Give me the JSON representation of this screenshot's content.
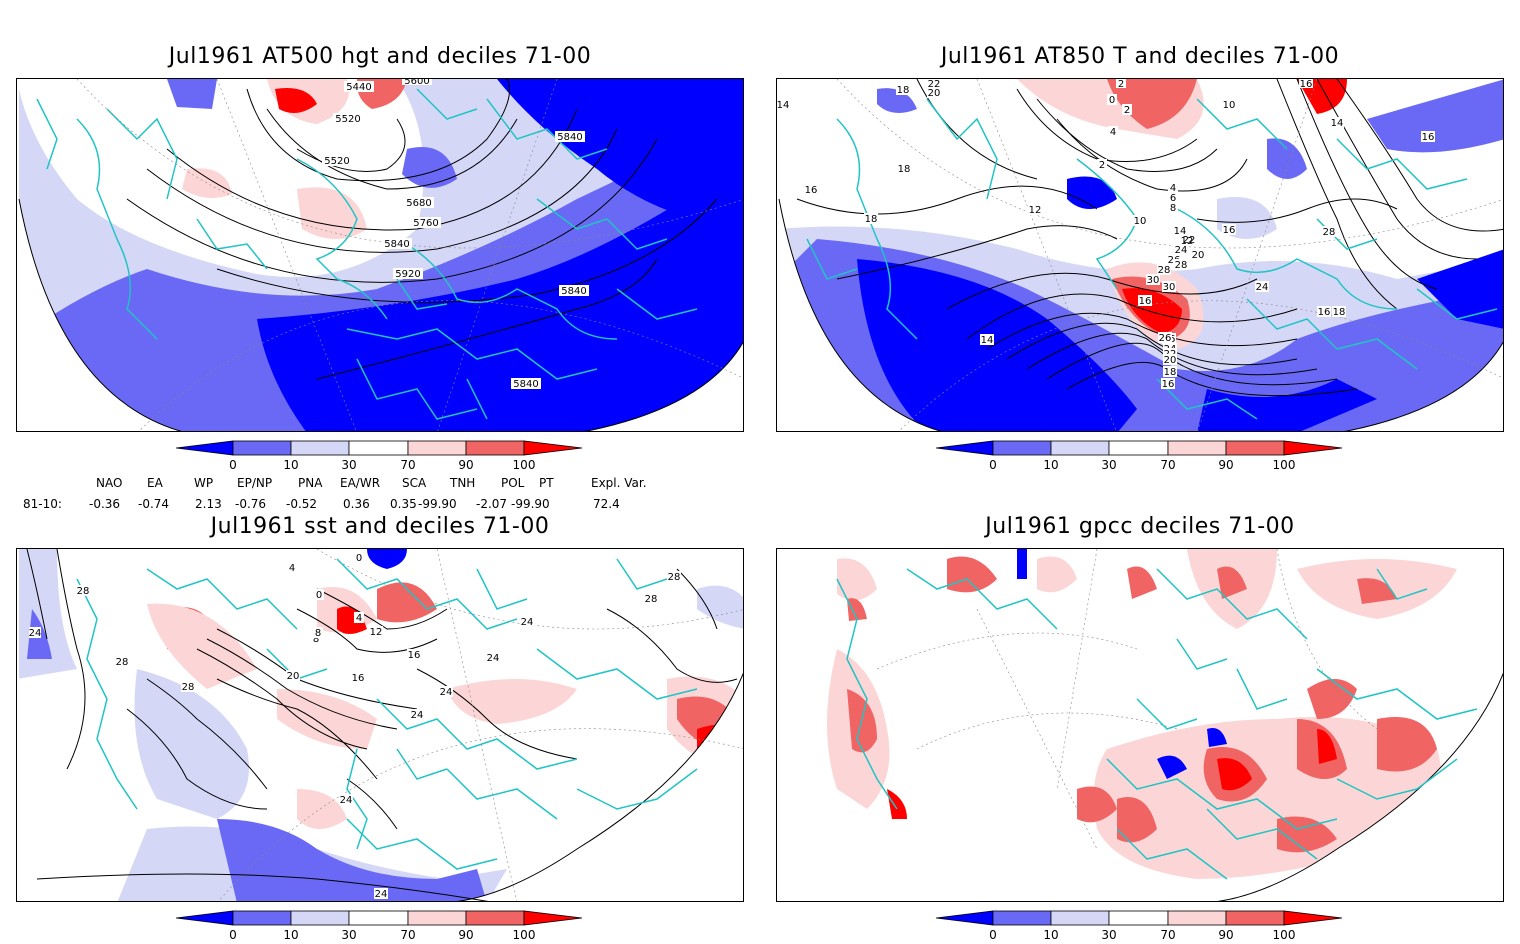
{
  "panels": [
    {
      "title": "Jul1961 AT500 hgt and deciles 71-00",
      "contour_labels": [
        "5440",
        "5600",
        "5520",
        "5520",
        "5680",
        "5760",
        "5840",
        "5840",
        "5920",
        "5840",
        "5840"
      ]
    },
    {
      "title": "Jul1961 AT850 T and deciles 71-00",
      "contour_labels": [
        "22",
        "20",
        "18",
        "14",
        "16",
        "18",
        "18",
        "2",
        "0",
        "2",
        "4",
        "2",
        "4",
        "6",
        "8",
        "10",
        "10",
        "12",
        "14",
        "16",
        "16",
        "30",
        "28",
        "26",
        "24",
        "22",
        "16",
        "14",
        "12",
        "20",
        "26",
        "28",
        "30",
        "26",
        "24",
        "22",
        "20",
        "18",
        "16",
        "14",
        "24",
        "16",
        "18",
        "28",
        "16"
      ]
    },
    {
      "title": "Jul1961 sst and deciles 71-00",
      "contour_labels": [
        "28",
        "24",
        "28",
        "28",
        "0",
        "4",
        "0",
        "4",
        "8",
        "12",
        "8",
        "16",
        "20",
        "16",
        "24",
        "24",
        "24",
        "24",
        "24",
        "28",
        "28",
        "24"
      ]
    },
    {
      "title": "Jul1961 gpcc deciles 71-00",
      "contour_labels": []
    }
  ],
  "colorbar": {
    "ticks": [
      "0",
      "10",
      "30",
      "70",
      "90",
      "100"
    ],
    "colors": [
      "#0000ff",
      "#6969f5",
      "#d5d7f7",
      "#ffffff",
      "#fcd6d6",
      "#f06464",
      "#ff0000"
    ]
  },
  "indices": {
    "headers": [
      "NAO",
      "EA",
      "WP",
      "EP/NP",
      "PNA",
      "EA/WR",
      "SCA",
      "TNH",
      "POL",
      "PT",
      "Expl. Var."
    ],
    "row_label": "81-10:",
    "values": [
      "-0.36",
      "-0.74",
      "2.13",
      "-0.76",
      "-0.52",
      "0.36",
      "0.35",
      "-99.90",
      "-2.07",
      "-99.90",
      "72.4"
    ]
  },
  "map_colors": {
    "coast": "#21c4c4",
    "deep_blue": "#0000ff",
    "mid_blue": "#6969f5",
    "light_blue": "#d5d7f7",
    "light_red": "#fcd6d6",
    "mid_red": "#f06464",
    "deep_red": "#ff0000"
  }
}
